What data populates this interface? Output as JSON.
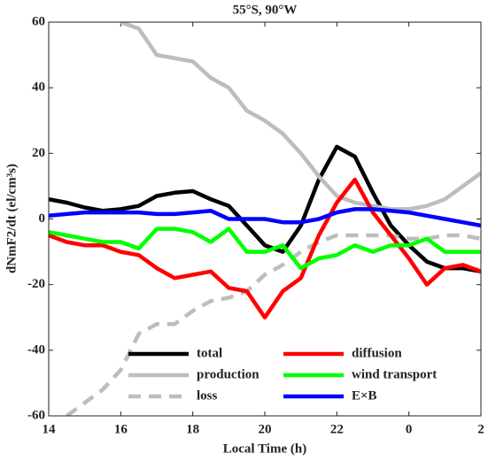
{
  "chart_data": {
    "type": "line",
    "title": "55°S, 90°W",
    "x_label": "Local Time (h)",
    "y_label": "dNmF2/dt (el/cm³s)",
    "x": [
      14,
      14.5,
      15,
      15.5,
      16,
      16.5,
      17,
      17.5,
      18,
      18.5,
      19,
      19.5,
      20,
      20.5,
      21,
      21.5,
      22,
      22.5,
      23,
      23.5,
      24,
      24.5,
      25,
      25.5,
      26
    ],
    "xlim": [
      14,
      26
    ],
    "xticks": [
      14,
      16,
      18,
      20,
      22,
      {
        "value": 24,
        "label": "0"
      },
      {
        "value": 26,
        "label": "2"
      }
    ],
    "ylim": [
      -60,
      60
    ],
    "yticks": [
      -60,
      -40,
      -20,
      0,
      20,
      40,
      60
    ],
    "series": [
      {
        "name": "total",
        "color": "#000000",
        "style": "solid",
        "values": [
          6,
          5,
          3.5,
          2.5,
          3,
          4,
          7,
          8,
          8.5,
          6,
          4,
          -2,
          -8,
          -10,
          -2,
          12,
          22,
          19,
          8,
          -2,
          -8,
          -13,
          -15,
          -15,
          -16
        ]
      },
      {
        "name": "production",
        "color": "#bdbdbd",
        "style": "solid",
        "values": [
          null,
          null,
          null,
          null,
          60,
          58,
          50,
          49,
          48,
          43,
          40,
          33,
          30,
          26,
          20,
          13,
          7,
          5,
          4,
          3,
          3,
          4,
          6,
          10,
          14
        ]
      },
      {
        "name": "loss",
        "color": "#bdbdbd",
        "style": "dashed",
        "values": [
          null,
          -60,
          -56,
          -52,
          -46,
          -35,
          -32,
          -32,
          -28,
          -25,
          -24,
          -22,
          -17,
          -14,
          -10,
          -7,
          -5,
          -5,
          -5,
          -5,
          -6,
          -6,
          -5,
          -5,
          -6
        ]
      },
      {
        "name": "diffusion",
        "color": "#ff0000",
        "style": "solid",
        "values": [
          -5,
          -7,
          -8,
          -8,
          -10,
          -11,
          -15,
          -18,
          -17,
          -16,
          -21,
          -22,
          -30,
          -22,
          -18,
          -5,
          5,
          12,
          2,
          -5,
          -12,
          -20,
          -15,
          -14,
          -16
        ]
      },
      {
        "name": "wind transport",
        "color": "#00ff00",
        "style": "solid",
        "values": [
          -4,
          -5,
          -6,
          -7,
          -7,
          -9,
          -3,
          -3,
          -4,
          -7,
          -3,
          -10,
          -10,
          -8,
          -15,
          -12,
          -11,
          -8,
          -10,
          -8,
          -8,
          -6,
          -10,
          -10,
          -10
        ]
      },
      {
        "name": "E×B",
        "color": "#0000ff",
        "style": "solid",
        "values": [
          1,
          1.5,
          2,
          2,
          2,
          2,
          1.5,
          1.5,
          2,
          2.5,
          0,
          0,
          0,
          -1,
          -1,
          0,
          2,
          3,
          3,
          2.5,
          2,
          1,
          0,
          -1,
          -2
        ]
      }
    ]
  }
}
